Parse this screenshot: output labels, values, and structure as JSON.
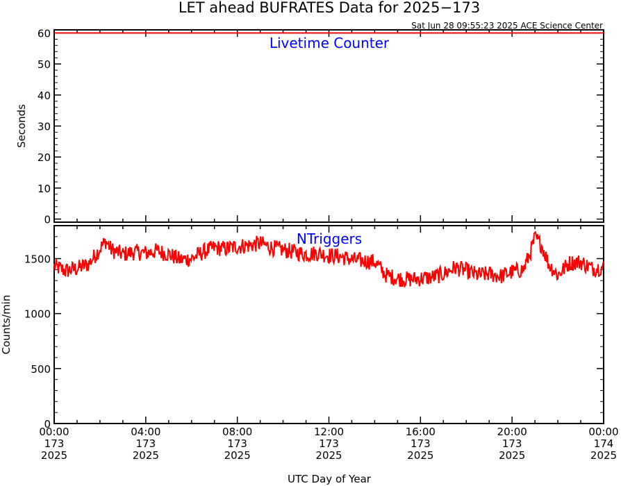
{
  "title": "LET ahead BUFRATES Data for 2025−173",
  "timestamp": "Sat Jun 28 09:55:23 2025 ACE Science Center",
  "xlabel": "UTC Day of Year",
  "colors": {
    "data": "#ff0000",
    "panel_label": "#0000ff",
    "axes": "#000000"
  },
  "chart_data": [
    {
      "type": "line",
      "panel_label": "Livetime Counter",
      "ylabel": "Seconds",
      "xlim": [
        0,
        24
      ],
      "ylim": [
        -1,
        61
      ],
      "yticks": [
        0,
        10,
        20,
        30,
        40,
        50,
        60
      ],
      "x": [
        0,
        24
      ],
      "values": [
        60,
        60
      ]
    },
    {
      "type": "line",
      "panel_label": "NTriggers",
      "ylabel": "Counts/min",
      "xlim": [
        0,
        24
      ],
      "ylim": [
        0,
        1800
      ],
      "yticks": [
        0,
        500,
        1000,
        1500
      ],
      "x": [
        0,
        0.5,
        1,
        1.5,
        2,
        2.25,
        2.5,
        3,
        3.5,
        4,
        4.5,
        5,
        5.5,
        6,
        6.5,
        7,
        7.5,
        8,
        8.5,
        9,
        9.5,
        10,
        10.5,
        11,
        11.5,
        12,
        12.5,
        13,
        13.5,
        14,
        14.5,
        15,
        15.5,
        16,
        16.5,
        17,
        17.5,
        18,
        18.5,
        19,
        19.5,
        20,
        20.5,
        20.8,
        21,
        21.3,
        21.6,
        22,
        22.5,
        23,
        23.5,
        24
      ],
      "values": [
        1430,
        1390,
        1410,
        1450,
        1590,
        1660,
        1580,
        1540,
        1560,
        1550,
        1570,
        1540,
        1490,
        1500,
        1560,
        1600,
        1590,
        1610,
        1620,
        1640,
        1600,
        1580,
        1560,
        1540,
        1550,
        1530,
        1520,
        1490,
        1480,
        1470,
        1350,
        1320,
        1310,
        1320,
        1330,
        1360,
        1420,
        1390,
        1350,
        1360,
        1340,
        1380,
        1400,
        1560,
        1690,
        1620,
        1450,
        1350,
        1460,
        1470,
        1410,
        1420
      ]
    }
  ],
  "xticks": [
    {
      "time": "00:00",
      "doy": "173",
      "year": "2025"
    },
    {
      "time": "04:00",
      "doy": "173",
      "year": "2025"
    },
    {
      "time": "08:00",
      "doy": "173",
      "year": "2025"
    },
    {
      "time": "12:00",
      "doy": "173",
      "year": "2025"
    },
    {
      "time": "16:00",
      "doy": "173",
      "year": "2025"
    },
    {
      "time": "20:00",
      "doy": "173",
      "year": "2025"
    },
    {
      "time": "00:00",
      "doy": "174",
      "year": "2025"
    }
  ]
}
